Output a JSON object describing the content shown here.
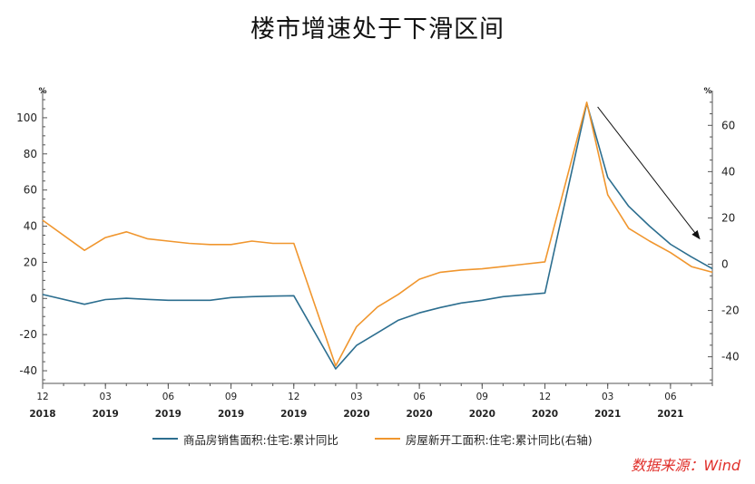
{
  "title": "楼市增速处于下滑区间",
  "source": "数据来源：Wind",
  "colors": {
    "series1": "#2c6e8f",
    "series2": "#f0962e",
    "axis": "#555555",
    "arrow": "#111111"
  },
  "chart_data": {
    "type": "line",
    "title": "楼市增速处于下滑区间",
    "left_axis": {
      "unit": "%",
      "ylim": [
        -47,
        115
      ],
      "ticks": [
        -40,
        -20,
        0,
        20,
        40,
        60,
        80,
        100
      ]
    },
    "right_axis": {
      "unit": "%",
      "ylim": [
        -51.5,
        75
      ],
      "ticks": [
        -40,
        -20,
        0,
        20,
        40,
        60
      ]
    },
    "x_ticks": [
      {
        "month": "12",
        "year": "2018"
      },
      {
        "month": "03",
        "year": "2019"
      },
      {
        "month": "06",
        "year": "2019"
      },
      {
        "month": "09",
        "year": "2019"
      },
      {
        "month": "12",
        "year": "2019"
      },
      {
        "month": "03",
        "year": "2020"
      },
      {
        "month": "06",
        "year": "2020"
      },
      {
        "month": "09",
        "year": "2020"
      },
      {
        "month": "12",
        "year": "2020"
      },
      {
        "month": "03",
        "year": "2021"
      },
      {
        "month": "06",
        "year": "2021"
      }
    ],
    "x": [
      "2018-12",
      "2019-02",
      "2019-03",
      "2019-04",
      "2019-05",
      "2019-06",
      "2019-07",
      "2019-08",
      "2019-09",
      "2019-10",
      "2019-11",
      "2019-12",
      "2020-02",
      "2020-03",
      "2020-04",
      "2020-05",
      "2020-06",
      "2020-07",
      "2020-08",
      "2020-09",
      "2020-10",
      "2020-11",
      "2020-12",
      "2021-02",
      "2021-03",
      "2021-04",
      "2021-05",
      "2021-06",
      "2021-07",
      "2021-08"
    ],
    "series": [
      {
        "name": "商品房销售面积:住宅:累计同比",
        "axis": "left",
        "values": [
          2.2,
          -3.2,
          -0.6,
          0.1,
          -0.5,
          -1.0,
          -1.0,
          -1.0,
          0.5,
          1.0,
          1.3,
          1.5,
          -39.0,
          -26.0,
          -19.0,
          -12.0,
          -8.0,
          -5.0,
          -2.5,
          -1.0,
          1.0,
          2.0,
          3.0,
          108.0,
          67.0,
          51.0,
          40.0,
          30.0,
          23.0,
          16.5
        ]
      },
      {
        "name": "房屋新开工面积:住宅:累计同比(右轴)",
        "axis": "right",
        "values": [
          19.0,
          6.0,
          11.5,
          14.0,
          11.0,
          10.0,
          9.0,
          8.5,
          8.5,
          10.0,
          9.0,
          9.0,
          -44.0,
          -27.0,
          -18.5,
          -13.0,
          -6.5,
          -3.5,
          -2.5,
          -2.0,
          -1.0,
          0.0,
          1.0,
          70.0,
          30.0,
          15.5,
          10.0,
          5.0,
          -1.0,
          -3.5
        ]
      }
    ],
    "arrow": {
      "from": {
        "x": "2021-02",
        "left_value": 106
      },
      "to": {
        "x": "2021-08",
        "left_value": 33
      }
    }
  }
}
